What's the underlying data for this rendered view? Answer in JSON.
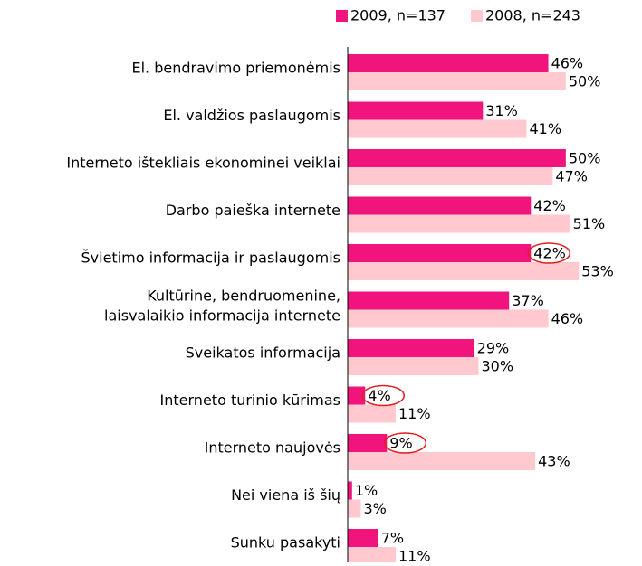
{
  "chart_data": {
    "type": "hbar",
    "categories": [
      "El. bendravimo priemonėmis",
      "El. valdžios paslaugomis",
      "Interneto ištekliais ekonominei veiklai",
      "Darbo paieška internete",
      "Švietimo informacija ir paslaugomis",
      "Kultūrine, bendruomenine,\nlaisvalaikio informacija internete",
      "Sveikatos informacija",
      "Interneto turinio kūrimas",
      "Interneto naujovės",
      "Nei viena iš šių",
      "Sunku pasakyti"
    ],
    "series": [
      {
        "name": "2009, n=137",
        "color": "#f0147c",
        "values": [
          46,
          31,
          50,
          42,
          42,
          37,
          29,
          4,
          9,
          1,
          7
        ],
        "value_labels": [
          "46%",
          "31%",
          "50%",
          "42%",
          "42%",
          "37%",
          "29%",
          "4%",
          "9%",
          "1%",
          "7%"
        ]
      },
      {
        "name": "2008, n=243",
        "color": "#ffc9cf",
        "values": [
          50,
          41,
          47,
          51,
          53,
          46,
          30,
          11,
          43,
          3,
          11
        ],
        "value_labels": [
          "50%",
          "41%",
          "47%",
          "51%",
          "53%",
          "46%",
          "30%",
          "11%",
          "43%",
          "3%",
          "11%"
        ]
      }
    ],
    "xlim": [
      0,
      60
    ],
    "legend": "top-right",
    "highlight_color": "#e02020",
    "highlighted": [
      [
        0,
        4
      ],
      [
        0,
        7
      ],
      [
        0,
        8
      ]
    ]
  }
}
